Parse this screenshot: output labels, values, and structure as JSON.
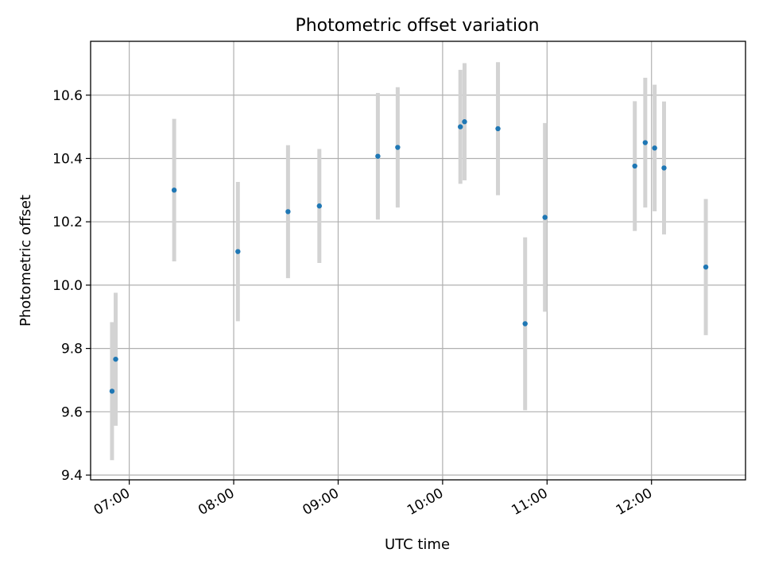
{
  "chart_data": {
    "type": "scatter",
    "title": "Photometric offset variation",
    "xlabel": "UTC time",
    "ylabel": "Photometric offset",
    "x_unit": "UTC hours",
    "xlim": [
      6.63,
      12.9
    ],
    "ylim": [
      9.385,
      10.77
    ],
    "grid": true,
    "x_ticks": [
      {
        "value": 7.0,
        "label": "07:00"
      },
      {
        "value": 8.0,
        "label": "08:00"
      },
      {
        "value": 9.0,
        "label": "09:00"
      },
      {
        "value": 10.0,
        "label": "10:00"
      },
      {
        "value": 11.0,
        "label": "11:00"
      },
      {
        "value": 12.0,
        "label": "12:00"
      }
    ],
    "y_ticks": [
      {
        "value": 9.4,
        "label": "9.4"
      },
      {
        "value": 9.6,
        "label": "9.6"
      },
      {
        "value": 9.8,
        "label": "9.8"
      },
      {
        "value": 10.0,
        "label": "10.0"
      },
      {
        "value": 10.2,
        "label": "10.2"
      },
      {
        "value": 10.4,
        "label": "10.4"
      },
      {
        "value": 10.6,
        "label": "10.6"
      }
    ],
    "colors": {
      "marker": "#1f77b4",
      "errorbar": "#d3d3d3",
      "grid": "#b0b0b0"
    },
    "points": [
      {
        "time": "06:50",
        "x": 6.835,
        "y": 9.665,
        "err": 0.218
      },
      {
        "time": "06:52",
        "x": 6.87,
        "y": 9.766,
        "err": 0.21
      },
      {
        "time": "07:26",
        "x": 7.43,
        "y": 10.3,
        "err": 0.225
      },
      {
        "time": "08:03",
        "x": 8.04,
        "y": 10.106,
        "err": 0.22
      },
      {
        "time": "08:31",
        "x": 8.52,
        "y": 10.232,
        "err": 0.21
      },
      {
        "time": "08:49",
        "x": 8.82,
        "y": 10.25,
        "err": 0.18
      },
      {
        "time": "09:23",
        "x": 9.38,
        "y": 10.407,
        "err": 0.2
      },
      {
        "time": "09:35",
        "x": 9.57,
        "y": 10.435,
        "err": 0.19
      },
      {
        "time": "10:10",
        "x": 10.17,
        "y": 10.5,
        "err": 0.18
      },
      {
        "time": "10:13",
        "x": 10.21,
        "y": 10.516,
        "err": 0.185
      },
      {
        "time": "10:32",
        "x": 10.53,
        "y": 10.494,
        "err": 0.21
      },
      {
        "time": "10:48",
        "x": 10.79,
        "y": 9.878,
        "err": 0.273
      },
      {
        "time": "10:59",
        "x": 10.98,
        "y": 10.214,
        "err": 0.298
      },
      {
        "time": "11:50",
        "x": 11.84,
        "y": 10.376,
        "err": 0.205
      },
      {
        "time": "11:56",
        "x": 11.94,
        "y": 10.45,
        "err": 0.205
      },
      {
        "time": "12:02",
        "x": 12.03,
        "y": 10.433,
        "err": 0.2
      },
      {
        "time": "12:07",
        "x": 12.12,
        "y": 10.37,
        "err": 0.21
      },
      {
        "time": "12:31",
        "x": 12.52,
        "y": 10.057,
        "err": 0.215
      }
    ]
  }
}
